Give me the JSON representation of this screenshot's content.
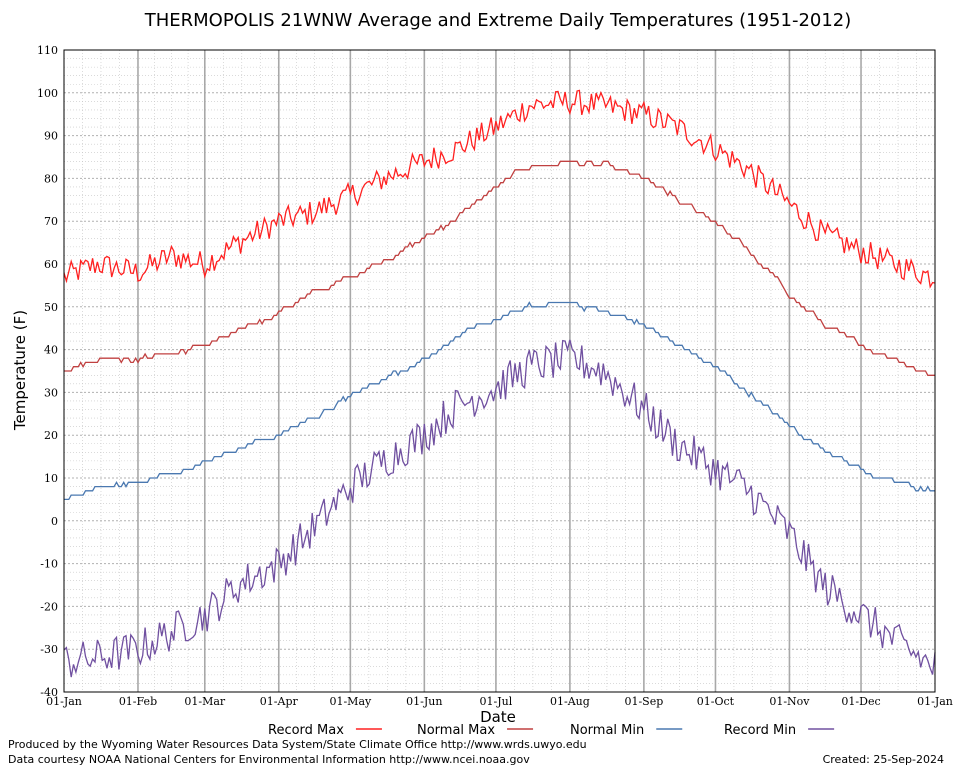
{
  "chart_data": {
    "type": "line",
    "title": "THERMOPOLIS 21WNW Average and Extreme Daily Temperatures (1951-2012)",
    "xlabel": "Date",
    "ylabel": "Temperature (F)",
    "ylim": [
      -40,
      110
    ],
    "yticks": [
      110,
      100,
      90,
      80,
      70,
      60,
      50,
      40,
      30,
      20,
      10,
      0,
      -10,
      -20,
      -30,
      -40
    ],
    "xticks": [
      "01-Jan",
      "01-Feb",
      "01-Mar",
      "01-Apr",
      "01-May",
      "01-Jun",
      "01-Jul",
      "01-Aug",
      "01-Sep",
      "01-Oct",
      "01-Nov",
      "01-Dec",
      "01-Jan"
    ],
    "grid": true,
    "legend_position": "bottom",
    "x_sample_dates": [
      "01-Jan",
      "15-Jan",
      "01-Feb",
      "15-Feb",
      "01-Mar",
      "15-Mar",
      "01-Apr",
      "15-Apr",
      "01-May",
      "15-May",
      "01-Jun",
      "15-Jun",
      "01-Jul",
      "15-Jul",
      "01-Aug",
      "15-Aug",
      "01-Sep",
      "15-Sep",
      "01-Oct",
      "15-Oct",
      "01-Nov",
      "15-Nov",
      "01-Dec",
      "15-Dec",
      "31-Dec"
    ],
    "series": [
      {
        "name": "Record Max",
        "color": "#ff2020",
        "values": [
          57,
          60,
          58,
          62,
          60,
          65,
          70,
          72,
          76,
          80,
          84,
          87,
          92,
          97,
          98,
          97,
          95,
          92,
          87,
          82,
          74,
          67,
          63,
          60,
          57
        ]
      },
      {
        "name": "Normal Max",
        "color": "#c04040",
        "values": [
          35,
          38,
          38,
          39,
          41,
          44,
          49,
          53,
          57,
          61,
          66,
          71,
          78,
          83,
          84,
          83,
          80,
          75,
          70,
          63,
          53,
          46,
          41,
          38,
          34
        ]
      },
      {
        "name": "Normal Min",
        "color": "#4a78b0",
        "values": [
          5,
          8,
          9,
          11,
          14,
          17,
          20,
          24,
          29,
          33,
          38,
          43,
          47,
          50,
          51,
          49,
          46,
          41,
          36,
          30,
          22,
          17,
          12,
          9,
          7
        ]
      },
      {
        "name": "Record Min",
        "color": "#7050a0",
        "values": [
          -33,
          -32,
          -30,
          -26,
          -22,
          -15,
          -10,
          -2,
          8,
          14,
          20,
          27,
          31,
          36,
          38,
          35,
          26,
          18,
          12,
          7,
          -3,
          -15,
          -22,
          -28,
          -34
        ]
      }
    ]
  },
  "footer": {
    "produced_by": "Produced by the Wyoming Water Resources Data System/State Climate Office http://www.wrds.uwyo.edu",
    "data_courtesy": "Data courtesy NOAA National Centers for Environmental Information http://www.ncei.noaa.gov",
    "created": "Created:  25-Sep-2024"
  }
}
